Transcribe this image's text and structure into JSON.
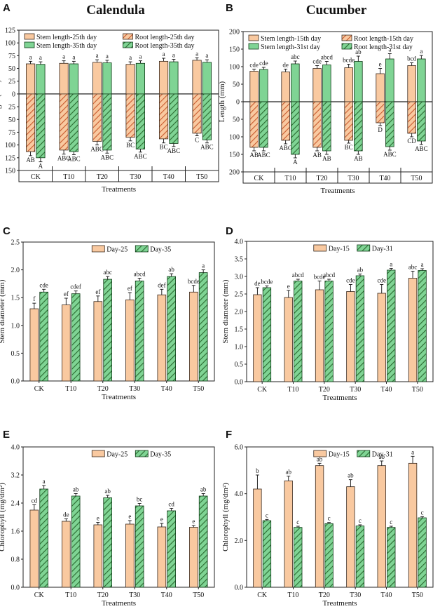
{
  "titles": {
    "left": "Calendula",
    "right": "Cucumber"
  },
  "panel_letters": [
    "A",
    "B",
    "C",
    "D",
    "E",
    "F"
  ],
  "colors": {
    "orange": "#F9C9A0",
    "orange_stroke": "#3a2a1f",
    "green": "#7FD494",
    "green_stroke": "#0e3a16",
    "hatch_orange": "#E8835A",
    "hatch_green": "#3a8a40"
  },
  "chart_data": [
    {
      "id": "A",
      "type": "bar",
      "layout": "length",
      "categories": [
        "CK",
        "T10",
        "T20",
        "T30",
        "T40",
        "T50"
      ],
      "xlabel": "Treatments",
      "ylabel": "Length (mm)",
      "ylim": [
        -150,
        125
      ],
      "yticks": [
        -150,
        -125,
        -100,
        -75,
        -50,
        -25,
        0,
        25,
        50,
        75,
        100,
        125
      ],
      "ytick_labels": [
        "150",
        "125",
        "100",
        "75",
        "50",
        "25",
        "0",
        "25",
        "50",
        "75",
        "100",
        "125"
      ],
      "legend": [
        "Stem length-25th day",
        "Root length-25th day",
        "Stem length-35th day",
        "Root length-35th day"
      ],
      "series": [
        {
          "name": "Stem length-25th day",
          "kind": "stem",
          "slot": 0,
          "values": [
            59,
            60,
            62,
            58,
            64,
            66
          ],
          "err": [
            5,
            5,
            5,
            5,
            6,
            5
          ],
          "letters": [
            "a",
            "a",
            "a",
            "a",
            "a",
            "a"
          ]
        },
        {
          "name": "Stem length-35th day",
          "kind": "stem",
          "slot": 1,
          "values": [
            58,
            59,
            61,
            60,
            63,
            62
          ],
          "err": [
            5,
            5,
            5,
            5,
            5,
            5
          ],
          "letters": [
            "a",
            "a",
            "a",
            "a",
            "a",
            "a"
          ]
        },
        {
          "name": "Root length-25th day",
          "kind": "root",
          "slot": 0,
          "values": [
            -113,
            -110,
            -93,
            -85,
            -88,
            -77
          ],
          "err": [
            8,
            8,
            7,
            7,
            8,
            5
          ],
          "letters": [
            "AB",
            "ABC",
            "ABC",
            "BC",
            "BC",
            "C"
          ]
        },
        {
          "name": "Root length-35th day",
          "kind": "root",
          "slot": 1,
          "values": [
            -125,
            -113,
            -110,
            -108,
            -97,
            -90
          ],
          "err": [
            8,
            6,
            6,
            6,
            6,
            6
          ],
          "letters": [
            "A",
            "ABC",
            "ABC",
            "ABC",
            "ABC",
            "ABC"
          ]
        }
      ]
    },
    {
      "id": "B",
      "type": "bar",
      "layout": "length",
      "categories": [
        "CK",
        "T10",
        "T20",
        "T30",
        "T40",
        "T50"
      ],
      "xlabel": "Treatments",
      "ylabel": "Length (mm)",
      "ylim": [
        -200,
        200
      ],
      "yticks": [
        -200,
        -150,
        -100,
        -50,
        0,
        50,
        100,
        150,
        200
      ],
      "ytick_labels": [
        "200",
        "150",
        "100",
        "50",
        "0",
        "50",
        "100",
        "150",
        "200"
      ],
      "legend": [
        "Stem length-15th day",
        "Root length-15th day",
        "Stem length-31st day",
        "Root length-31st day"
      ],
      "series": [
        {
          "name": "Stem length-15th day",
          "kind": "stem",
          "slot": 0,
          "values": [
            87,
            85,
            95,
            97,
            80,
            103
          ],
          "err": [
            6,
            8,
            8,
            10,
            15,
            8
          ],
          "letters": [
            "cde",
            "de",
            "cde",
            "bcde",
            "e",
            "bcd"
          ]
        },
        {
          "name": "Stem length-31st day",
          "kind": "stem",
          "slot": 1,
          "values": [
            92,
            108,
            105,
            115,
            122,
            122
          ],
          "err": [
            6,
            8,
            10,
            15,
            15,
            10
          ],
          "letters": [
            "cde",
            "abc",
            "abcd",
            "ab",
            "a",
            "a"
          ]
        },
        {
          "name": "Root length-15th day",
          "kind": "root",
          "slot": 0,
          "values": [
            -130,
            -110,
            -130,
            -110,
            -60,
            -90
          ],
          "err": [
            10,
            10,
            10,
            8,
            8,
            10
          ],
          "letters": [
            "AB",
            "ABC",
            "AB",
            "BC",
            "D",
            "CD"
          ]
        },
        {
          "name": "Root length-31st day",
          "kind": "root",
          "slot": 1,
          "values": [
            -130,
            -150,
            -140,
            -140,
            -128,
            -112
          ],
          "err": [
            10,
            10,
            10,
            10,
            10,
            10
          ],
          "letters": [
            "ABC",
            "A",
            "AB",
            "AB",
            "ABC",
            "ABC"
          ]
        }
      ]
    },
    {
      "id": "C",
      "type": "bar",
      "layout": "pair",
      "categories": [
        "CK",
        "T10",
        "T20",
        "T30",
        "T40",
        "T50"
      ],
      "xlabel": "Treatments",
      "ylabel": "Stem diameter (mm)",
      "ylim": [
        0,
        2.5
      ],
      "yticks": [
        0,
        0.5,
        1.0,
        1.5,
        2.0,
        2.5
      ],
      "ytick_labels": [
        "0.0",
        "0.5",
        "1.0",
        "1.5",
        "2.0",
        "2.5"
      ],
      "legend": [
        "Day-25",
        "Day-35"
      ],
      "series": [
        {
          "name": "Day-25",
          "kind": "plain",
          "slot": 0,
          "values": [
            1.3,
            1.37,
            1.43,
            1.46,
            1.55,
            1.6
          ],
          "err": [
            0.1,
            0.12,
            0.1,
            0.13,
            0.1,
            0.12
          ],
          "letters": [
            "f",
            "ef",
            "ef",
            "ef",
            "def",
            "bcde"
          ]
        },
        {
          "name": "Day-35",
          "kind": "hatch",
          "slot": 1,
          "values": [
            1.6,
            1.57,
            1.83,
            1.8,
            1.88,
            1.95
          ],
          "err": [
            0.05,
            0.05,
            0.05,
            0.05,
            0.05,
            0.05
          ],
          "letters": [
            "cde",
            "cdef",
            "abc",
            "abcd",
            "ab",
            "a"
          ]
        }
      ]
    },
    {
      "id": "D",
      "type": "bar",
      "layout": "pair",
      "categories": [
        "CK",
        "T10",
        "T20",
        "T30",
        "T40",
        "T50"
      ],
      "xlabel": "Treatments",
      "ylabel": "Stem diameter (mm)",
      "ylim": [
        0,
        4.0
      ],
      "yticks": [
        0,
        0.5,
        1.0,
        1.5,
        2.0,
        2.5,
        3.0,
        3.5,
        4.0
      ],
      "ytick_labels": [
        "0.0",
        "0.5",
        "1.0",
        "1.5",
        "2.0",
        "2.5",
        "3.0",
        "3.5",
        "4.0"
      ],
      "legend": [
        "Day-15",
        "Day-31"
      ],
      "series": [
        {
          "name": "Day-15",
          "kind": "plain",
          "slot": 0,
          "values": [
            2.48,
            2.4,
            2.62,
            2.57,
            2.52,
            2.95
          ],
          "err": [
            0.2,
            0.2,
            0.25,
            0.2,
            0.25,
            0.2
          ],
          "letters": [
            "de",
            "e",
            "bcde",
            "cde",
            "cde",
            "abc"
          ]
        },
        {
          "name": "Day-31",
          "kind": "hatch",
          "slot": 1,
          "values": [
            2.68,
            2.87,
            2.87,
            3.02,
            3.18,
            3.17
          ],
          "err": [
            0.05,
            0.05,
            0.05,
            0.05,
            0.05,
            0.05
          ],
          "letters": [
            "bcde",
            "abcd",
            "abcd",
            "ab",
            "a",
            "a"
          ]
        }
      ]
    },
    {
      "id": "E",
      "type": "bar",
      "layout": "pair",
      "categories": [
        "CK",
        "T10",
        "T20",
        "T30",
        "T40",
        "T50"
      ],
      "xlabel": "Treatments",
      "ylabel": "Chlorophyll (mg/dm²)",
      "ylim": [
        0,
        4.0
      ],
      "yticks": [
        0,
        0.8,
        1.6,
        2.4,
        3.2,
        4.0
      ],
      "ytick_labels": [
        "0.0",
        "0.8",
        "1.6",
        "2.4",
        "3.2",
        "4.0"
      ],
      "legend": [
        "Day-25",
        "Day-35"
      ],
      "series": [
        {
          "name": "Day-25",
          "kind": "plain",
          "slot": 0,
          "values": [
            2.2,
            1.88,
            1.78,
            1.8,
            1.72,
            1.71
          ],
          "err": [
            0.15,
            0.07,
            0.07,
            0.1,
            0.1,
            0.05
          ],
          "letters": [
            "cd",
            "de",
            "e",
            "e",
            "e",
            "e"
          ]
        },
        {
          "name": "Day-35",
          "kind": "hatch",
          "slot": 1,
          "values": [
            2.8,
            2.6,
            2.55,
            2.32,
            2.18,
            2.6
          ],
          "err": [
            0.1,
            0.07,
            0.07,
            0.07,
            0.07,
            0.07
          ],
          "letters": [
            "a",
            "ab",
            "ab",
            "bc",
            "cd",
            "ab"
          ]
        }
      ]
    },
    {
      "id": "F",
      "type": "bar",
      "layout": "pair",
      "categories": [
        "CK",
        "T10",
        "T20",
        "T30",
        "T40",
        "T50"
      ],
      "xlabel": "Treatments",
      "ylabel": "Chlorophyll (mg/dm²)",
      "ylim": [
        0,
        6.0
      ],
      "yticks": [
        0,
        2.0,
        4.0,
        6.0
      ],
      "ytick_labels": [
        "0.0",
        "2.0",
        "4.0",
        "6.0"
      ],
      "legend": [
        "Day-15",
        "Day-31"
      ],
      "series": [
        {
          "name": "Day-15",
          "kind": "plain",
          "slot": 0,
          "values": [
            4.2,
            4.55,
            5.2,
            4.3,
            5.2,
            5.3
          ],
          "err": [
            0.6,
            0.2,
            0.1,
            0.3,
            0.2,
            0.3
          ],
          "letters": [
            "b",
            "ab",
            "ab",
            "ab",
            "ab",
            "a"
          ]
        },
        {
          "name": "Day-31",
          "kind": "hatch",
          "slot": 1,
          "values": [
            2.85,
            2.56,
            2.72,
            2.62,
            2.56,
            2.97
          ],
          "err": [
            0.05,
            0.05,
            0.05,
            0.05,
            0.05,
            0.05
          ],
          "letters": [
            "c",
            "c",
            "c",
            "c",
            "c",
            "c"
          ]
        }
      ]
    }
  ]
}
